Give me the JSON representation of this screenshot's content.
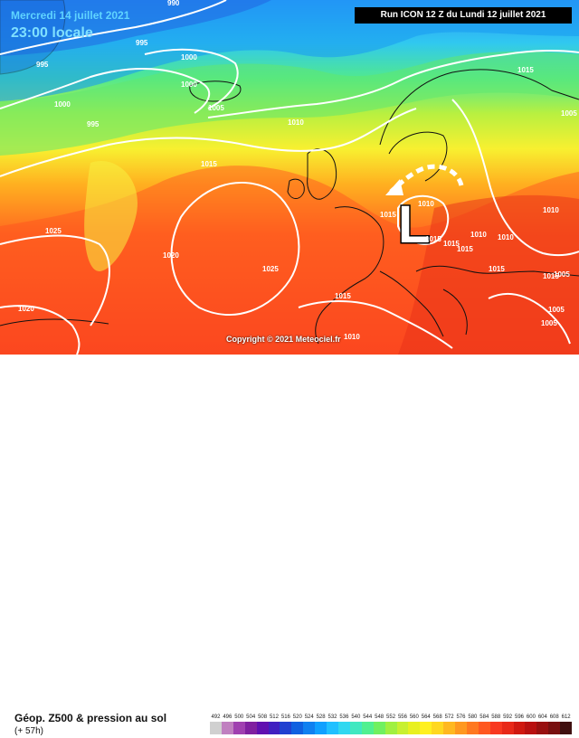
{
  "header": {
    "date": "Mercredi 14 juillet 2021",
    "time": "23:00 locale",
    "run": "Run ICON 12 Z du Lundi 12 juillet 2021"
  },
  "map": {
    "low_marker": "L",
    "copyright": "Copyright © 2021 Meteociel.fr",
    "isobar_labels": [
      "990",
      "995",
      "995",
      "1000",
      "995",
      "1000",
      "1000",
      "1005",
      "1010",
      "1015",
      "1015",
      "1015",
      "1015",
      "1025",
      "1020",
      "1025",
      "1020",
      "1010",
      "1015",
      "1010",
      "1010",
      "1010",
      "1015",
      "1005",
      "1015",
      "1015",
      "1005",
      "1005",
      "1010",
      "1015",
      "1005"
    ]
  },
  "legend": {
    "title": "Géop. Z500 & pression au sol",
    "subtitle": "(+ 57h)",
    "scale_labels": [
      "492",
      "496",
      "500",
      "504",
      "508",
      "512",
      "516",
      "520",
      "524",
      "528",
      "532",
      "536",
      "540",
      "544",
      "548",
      "552",
      "556",
      "560",
      "564",
      "568",
      "572",
      "576",
      "580",
      "584",
      "588",
      "592",
      "596",
      "600",
      "604",
      "608",
      "612"
    ],
    "scale_colors": [
      "#d0d0d0",
      "#c080c0",
      "#a040b0",
      "#8020a0",
      "#6010b0",
      "#4020c0",
      "#2040d0",
      "#1060e0",
      "#1080f0",
      "#10a0ff",
      "#20c0ff",
      "#30d8f0",
      "#40e8c0",
      "#50f090",
      "#70f060",
      "#a0f040",
      "#c8f030",
      "#e8f020",
      "#fff020",
      "#ffd820",
      "#ffb820",
      "#ff9820",
      "#ff7820",
      "#ff5820",
      "#f83820",
      "#e82818",
      "#d01810",
      "#b81010",
      "#981010",
      "#781010",
      "#401010"
    ]
  }
}
